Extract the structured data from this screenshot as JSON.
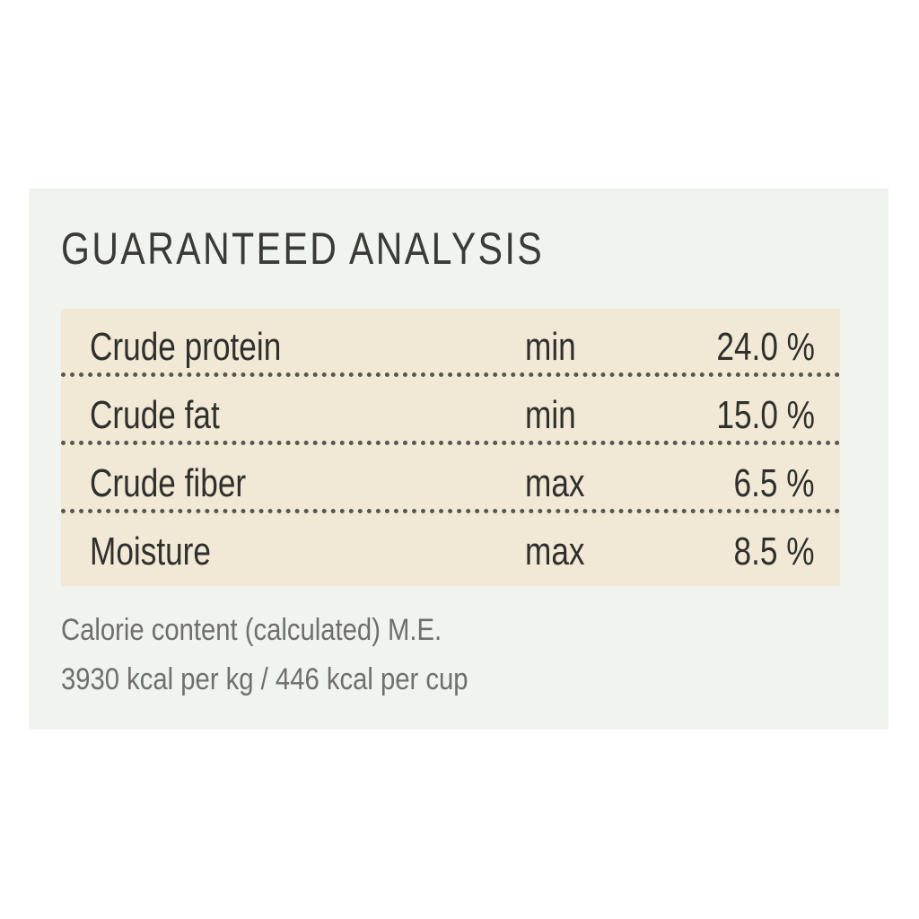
{
  "label": {
    "title": "GUARANTEED ANALYSIS",
    "rows": [
      {
        "name": "Crude protein",
        "qualifier": "min",
        "value": "24.0 %"
      },
      {
        "name": "Crude fat",
        "qualifier": "min",
        "value": "15.0 %"
      },
      {
        "name": "Crude fiber",
        "qualifier": "max",
        "value": "6.5 %"
      },
      {
        "name": "Moisture",
        "qualifier": "max",
        "value": "8.5 %"
      }
    ],
    "calorie_line1": "Calorie content (calculated) M.E.",
    "calorie_line2": "3930 kcal per kg / 446 kcal per cup"
  },
  "colors": {
    "panel": "#f1f3ee",
    "table": "#f1e9d5",
    "text": "#2f2f2d",
    "muted": "#6f6f6c"
  }
}
